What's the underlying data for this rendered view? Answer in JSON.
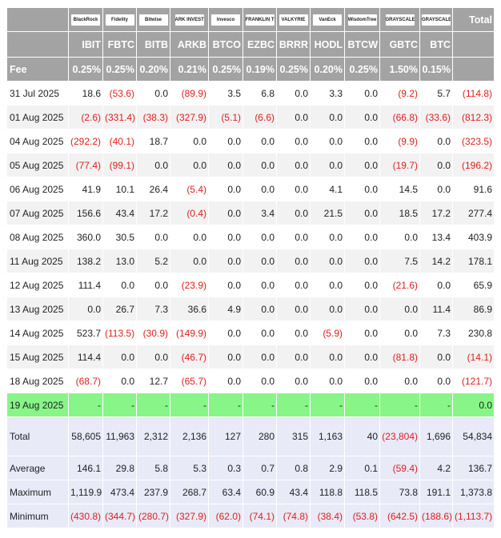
{
  "header": {
    "logos": [
      "BlackRock",
      "Fidelity",
      "Bitwise",
      "ARK INVEST",
      "Invesco",
      "FRANKLIN TEMPLETON",
      "VALKYRIE",
      "VanEck",
      "WisdomTree",
      "GRAYSCALE",
      "GRAYSCALE"
    ],
    "total_label": "Total",
    "tickers": [
      "IBIT",
      "FBTC",
      "BITB",
      "ARKB",
      "BTCO",
      "EZBC",
      "BRRR",
      "HODL",
      "BTCW",
      "GBTC",
      "BTC"
    ]
  },
  "fee": {
    "label": "Fee",
    "values": [
      "0.25%",
      "0.25%",
      "0.20%",
      "0.21%",
      "0.25%",
      "0.19%",
      "0.25%",
      "0.20%",
      "0.25%",
      "1.50%",
      "0.15%"
    ]
  },
  "rows": [
    {
      "date": "31 Jul 2025",
      "values": [
        "18.6",
        "(53.6)",
        "0.0",
        "(89.9)",
        "3.5",
        "6.8",
        "0.0",
        "3.3",
        "0.0",
        "(9.2)",
        "5.7",
        "(114.8)"
      ]
    },
    {
      "date": "01 Aug 2025",
      "values": [
        "(2.6)",
        "(331.4)",
        "(38.3)",
        "(327.9)",
        "(5.1)",
        "(6.6)",
        "0.0",
        "0.0",
        "0.0",
        "(66.8)",
        "(33.6)",
        "(812.3)"
      ]
    },
    {
      "date": "04 Aug 2025",
      "values": [
        "(292.2)",
        "(40.1)",
        "18.7",
        "0.0",
        "0.0",
        "0.0",
        "0.0",
        "0.0",
        "0.0",
        "(9.9)",
        "0.0",
        "(323.5)"
      ]
    },
    {
      "date": "05 Aug 2025",
      "values": [
        "(77.4)",
        "(99.1)",
        "0.0",
        "0.0",
        "0.0",
        "0.0",
        "0.0",
        "0.0",
        "0.0",
        "(19.7)",
        "0.0",
        "(196.2)"
      ]
    },
    {
      "date": "06 Aug 2025",
      "values": [
        "41.9",
        "10.1",
        "26.4",
        "(5.4)",
        "0.0",
        "0.0",
        "0.0",
        "4.1",
        "0.0",
        "14.5",
        "0.0",
        "91.6"
      ]
    },
    {
      "date": "07 Aug 2025",
      "values": [
        "156.6",
        "43.4",
        "17.2",
        "(0.4)",
        "0.0",
        "3.4",
        "0.0",
        "21.5",
        "0.0",
        "18.5",
        "17.2",
        "277.4"
      ]
    },
    {
      "date": "08 Aug 2025",
      "values": [
        "360.0",
        "30.5",
        "0.0",
        "0.0",
        "0.0",
        "0.0",
        "0.0",
        "0.0",
        "0.0",
        "0.0",
        "13.4",
        "403.9"
      ]
    },
    {
      "date": "11 Aug 2025",
      "values": [
        "138.2",
        "13.0",
        "5.2",
        "0.0",
        "0.0",
        "0.0",
        "0.0",
        "0.0",
        "0.0",
        "7.5",
        "14.2",
        "178.1"
      ]
    },
    {
      "date": "12 Aug 2025",
      "values": [
        "111.4",
        "0.0",
        "0.0",
        "(23.9)",
        "0.0",
        "0.0",
        "0.0",
        "0.0",
        "0.0",
        "(21.6)",
        "0.0",
        "65.9"
      ]
    },
    {
      "date": "13 Aug 2025",
      "values": [
        "0.0",
        "26.7",
        "7.3",
        "36.6",
        "4.9",
        "0.0",
        "0.0",
        "0.0",
        "0.0",
        "0.0",
        "11.4",
        "86.9"
      ]
    },
    {
      "date": "14 Aug 2025",
      "values": [
        "523.7",
        "(113.5)",
        "(30.9)",
        "(149.9)",
        "0.0",
        "0.0",
        "0.0",
        "(5.9)",
        "0.0",
        "0.0",
        "7.3",
        "230.8"
      ]
    },
    {
      "date": "15 Aug 2025",
      "values": [
        "114.4",
        "0.0",
        "0.0",
        "(46.7)",
        "0.0",
        "0.0",
        "0.0",
        "0.0",
        "0.0",
        "(81.8)",
        "0.0",
        "(14.1)"
      ]
    },
    {
      "date": "18 Aug 2025",
      "values": [
        "(68.7)",
        "0.0",
        "12.7",
        "(65.7)",
        "0.0",
        "0.0",
        "0.0",
        "0.0",
        "0.0",
        "0.0",
        "0.0",
        "(121.7)"
      ]
    },
    {
      "date": "19 Aug 2025",
      "values": [
        "-",
        "-",
        "-",
        "-",
        "-",
        "-",
        "-",
        "-",
        "-",
        "-",
        "-",
        "0.0"
      ]
    }
  ],
  "summary": [
    {
      "label": "Total",
      "values": [
        "58,605",
        "11,963",
        "2,312",
        "2,136",
        "127",
        "280",
        "315",
        "1,163",
        "40",
        "(23,804)",
        "1,696",
        "54,834"
      ]
    },
    {
      "label": "Average",
      "values": [
        "146.1",
        "29.8",
        "5.8",
        "5.3",
        "0.3",
        "0.7",
        "0.8",
        "2.9",
        "0.1",
        "(59.4)",
        "4.2",
        "136.7"
      ]
    },
    {
      "label": "Maximum",
      "values": [
        "1,119.9",
        "473.4",
        "237.9",
        "268.7",
        "63.4",
        "60.9",
        "43.4",
        "118.8",
        "118.5",
        "73.8",
        "191.1",
        "1,373.8"
      ]
    },
    {
      "label": "Minimum",
      "values": [
        "(430.8)",
        "(344.7)",
        "(280.7)",
        "(327.9)",
        "(62.0)",
        "(74.1)",
        "(74.8)",
        "(38.4)",
        "(53.8)",
        "(642.5)",
        "(188.6)",
        "(1,113.7)"
      ]
    }
  ]
}
